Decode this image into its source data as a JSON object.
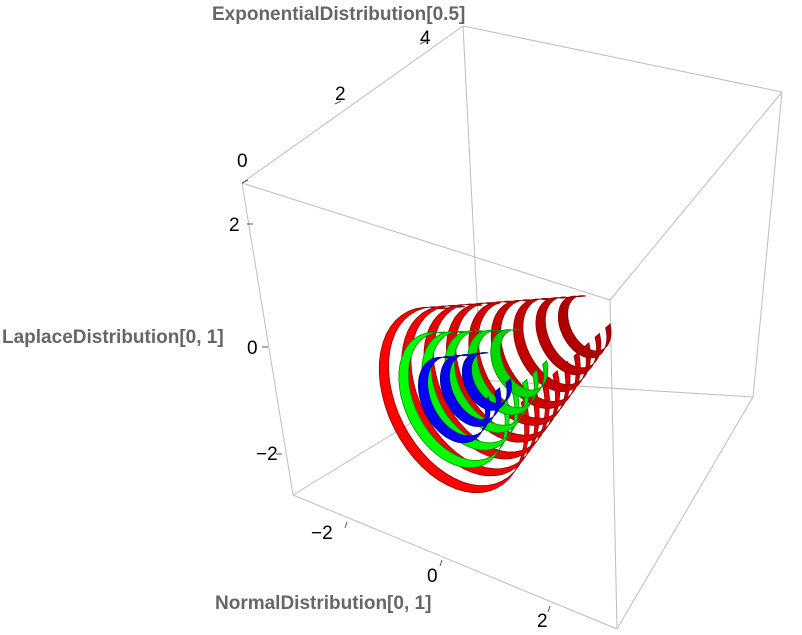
{
  "chart_data": {
    "type": "scatter",
    "plot_style": "3D nested ribbon contours (highest-density regions)",
    "axes": {
      "x": {
        "label": "NormalDistribution[0, 1]",
        "ticks": [
          "−2",
          "0",
          "2"
        ],
        "range": [
          -3,
          3
        ]
      },
      "y": {
        "label": "LaplaceDistribution[0, 1]",
        "ticks": [
          "−2",
          "0",
          "2"
        ],
        "range": [
          -3,
          3
        ]
      },
      "z": {
        "label": "ExponentialDistribution[0.5]",
        "ticks": [
          "0",
          "2",
          "4"
        ],
        "range": [
          0,
          5
        ]
      }
    },
    "series": [
      {
        "color": "#ff0000",
        "radius": 2.6,
        "ribbons": 9
      },
      {
        "color": "#00ff00",
        "radius": 1.9,
        "ribbons": 5
      },
      {
        "color": "#0000ff",
        "radius": 1.2,
        "ribbons": 3
      }
    ],
    "box": true,
    "grid": false,
    "legend": "none"
  }
}
